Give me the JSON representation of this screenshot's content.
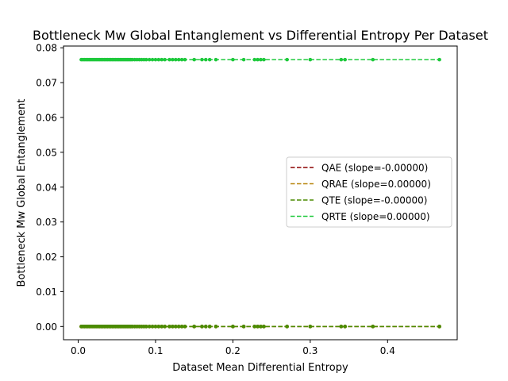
{
  "chart_data": {
    "type": "scatter",
    "title": "Bottleneck Mw Global Entanglement vs Differential Entropy Per Dataset",
    "xlabel": "Dataset Mean Differential Entropy",
    "ylabel": "Bottleneck Mw Global Entanglement",
    "xlim": [
      -0.019,
      0.49
    ],
    "ylim": [
      -0.0038,
      0.0805
    ],
    "xticks": [
      0.0,
      0.1,
      0.2,
      0.3,
      0.4
    ],
    "xtick_labels": [
      "0.0",
      "0.1",
      "0.2",
      "0.3",
      "0.4"
    ],
    "yticks": [
      0.0,
      0.01,
      0.02,
      0.03,
      0.04,
      0.05,
      0.06,
      0.07,
      0.08
    ],
    "ytick_labels": [
      "0.00",
      "0.01",
      "0.02",
      "0.03",
      "0.04",
      "0.05",
      "0.06",
      "0.07",
      "0.08"
    ],
    "grid": false,
    "legend_position": "center-right",
    "x": [
      0.004,
      0.006,
      0.008,
      0.01,
      0.012,
      0.014,
      0.016,
      0.018,
      0.02,
      0.022,
      0.024,
      0.026,
      0.028,
      0.03,
      0.032,
      0.034,
      0.036,
      0.038,
      0.04,
      0.042,
      0.044,
      0.046,
      0.048,
      0.05,
      0.052,
      0.054,
      0.056,
      0.058,
      0.06,
      0.062,
      0.064,
      0.066,
      0.068,
      0.07,
      0.073,
      0.076,
      0.079,
      0.082,
      0.085,
      0.088,
      0.092,
      0.096,
      0.1,
      0.104,
      0.108,
      0.112,
      0.118,
      0.122,
      0.126,
      0.13,
      0.134,
      0.138,
      0.15,
      0.16,
      0.165,
      0.17,
      0.178,
      0.2,
      0.214,
      0.228,
      0.232,
      0.236,
      0.24,
      0.27,
      0.3,
      0.34,
      0.345,
      0.381,
      0.467
    ],
    "series": [
      {
        "name": "QAE (slope=-0.00000)",
        "color": "#8b0000",
        "value": 0.0
      },
      {
        "name": "QRAE (slope=0.00000)",
        "color": "#b8860b",
        "value": 0.0
      },
      {
        "name": "QTE (slope=-0.00000)",
        "color": "#4a8c00",
        "value": 0.0
      },
      {
        "name": "QRTE (slope=0.00000)",
        "color": "#1ec93c",
        "value": 0.0766
      }
    ]
  }
}
